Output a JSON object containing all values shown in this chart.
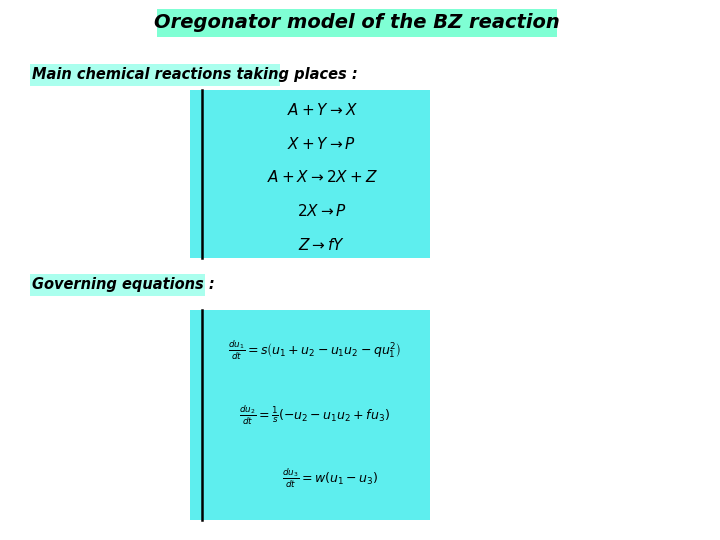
{
  "title": "Oregonator model of the BZ reaction",
  "title_bg": "#7FFFD4",
  "label1": "Main chemical reactions taking places :",
  "label1_bg": "#AAFFEE",
  "label2": "Governing equations :",
  "label2_bg": "#AAFFEE",
  "reactions_bg": "#5EEEEE",
  "equations_bg": "#5EEEEE",
  "reactions": [
    "A + Y \\rightarrow X",
    "X + Y \\rightarrow P",
    "A + X \\rightarrow 2X + Z",
    "2X \\rightarrow P",
    "Z \\rightarrow fY"
  ],
  "eq1": "\\frac{du_1}{dt} = s\\left(u_1 + u_2 - u_1 u_2 - qu_1^2\\right)",
  "eq2": "\\frac{du_2}{dt} = \\frac{1}{s}\\left(-u_2 - u_1 u_2 + fu_3\\right)",
  "eq3": "\\frac{du_3}{dt} = w\\left(u_1 - u_3\\right)",
  "bg_color": "#FFFFFF"
}
